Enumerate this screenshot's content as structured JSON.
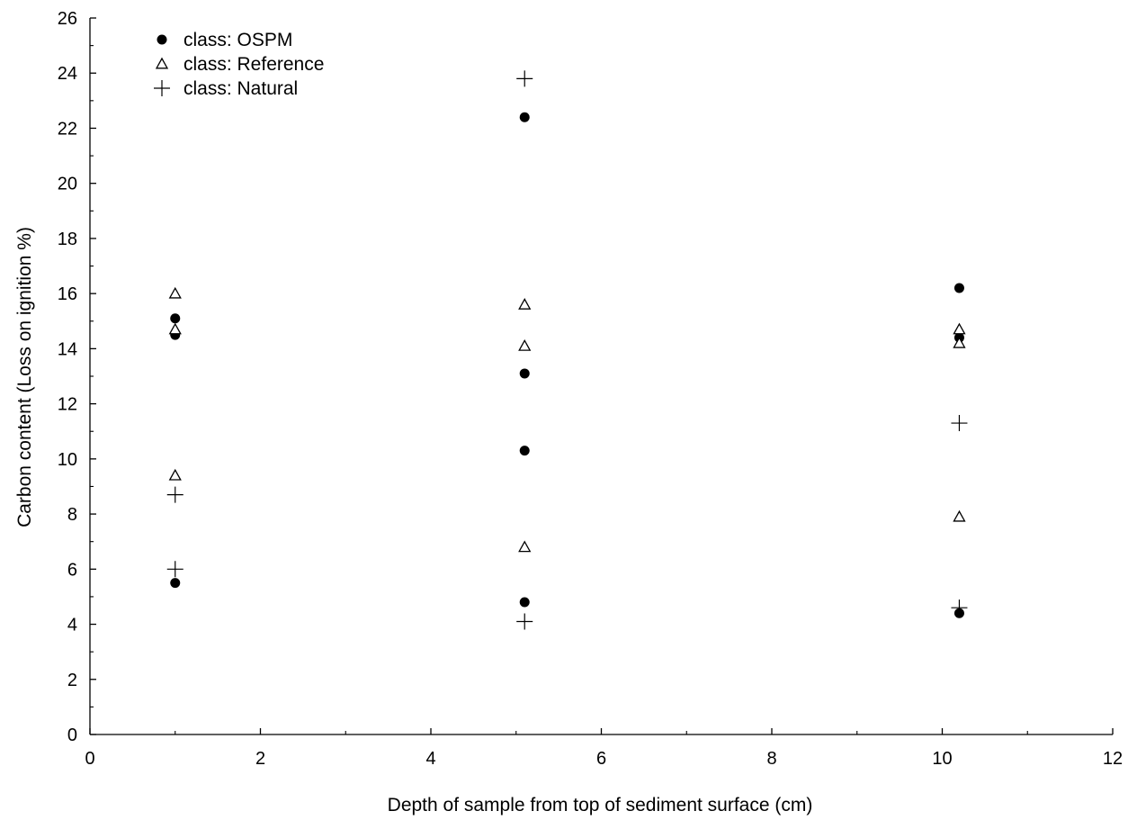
{
  "chart_data": {
    "type": "scatter",
    "title": "",
    "xlabel": "Depth of sample from top of sediment surface (cm)",
    "ylabel": "Carbon content (Loss on ignition %)",
    "xlim": [
      0,
      12
    ],
    "ylim": [
      0,
      26
    ],
    "x_ticks": [
      "0",
      "2",
      "4",
      "6",
      "8",
      "10",
      "12"
    ],
    "y_ticks": [
      "0",
      "2",
      "4",
      "6",
      "8",
      "10",
      "12",
      "14",
      "16",
      "18",
      "20",
      "22",
      "24",
      "26"
    ],
    "grid": false,
    "legend_position": "top-left",
    "series": [
      {
        "name": "class: OSPM",
        "marker": "filled-circle",
        "color": "#000000",
        "points": [
          {
            "x": 1.0,
            "y": 15.1
          },
          {
            "x": 1.0,
            "y": 14.5
          },
          {
            "x": 1.0,
            "y": 5.5
          },
          {
            "x": 5.1,
            "y": 22.4
          },
          {
            "x": 5.1,
            "y": 13.1
          },
          {
            "x": 5.1,
            "y": 10.3
          },
          {
            "x": 5.1,
            "y": 4.8
          },
          {
            "x": 10.2,
            "y": 16.2
          },
          {
            "x": 10.2,
            "y": 14.4
          },
          {
            "x": 10.2,
            "y": 4.4
          }
        ]
      },
      {
        "name": "class: Reference",
        "marker": "open-triangle",
        "color": "#000000",
        "points": [
          {
            "x": 1.0,
            "y": 16.0
          },
          {
            "x": 1.0,
            "y": 14.7
          },
          {
            "x": 1.0,
            "y": 9.4
          },
          {
            "x": 5.1,
            "y": 15.6
          },
          {
            "x": 5.1,
            "y": 14.1
          },
          {
            "x": 5.1,
            "y": 6.8
          },
          {
            "x": 10.2,
            "y": 14.7
          },
          {
            "x": 10.2,
            "y": 14.2
          },
          {
            "x": 10.2,
            "y": 7.9
          }
        ]
      },
      {
        "name": "class: Natural",
        "marker": "plus",
        "color": "#000000",
        "points": [
          {
            "x": 1.0,
            "y": 8.7
          },
          {
            "x": 1.0,
            "y": 6.0
          },
          {
            "x": 5.1,
            "y": 23.8
          },
          {
            "x": 5.1,
            "y": 4.1
          },
          {
            "x": 10.2,
            "y": 11.3
          },
          {
            "x": 10.2,
            "y": 4.6
          }
        ]
      }
    ]
  }
}
